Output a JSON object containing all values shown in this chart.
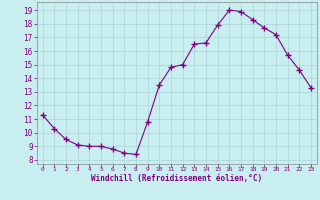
{
  "x": [
    0,
    1,
    2,
    3,
    4,
    5,
    6,
    7,
    8,
    9,
    10,
    11,
    12,
    13,
    14,
    15,
    16,
    17,
    18,
    19,
    20,
    21,
    22,
    23
  ],
  "y": [
    11.3,
    10.3,
    9.5,
    9.1,
    9.0,
    9.0,
    8.8,
    8.5,
    8.4,
    10.8,
    13.5,
    14.8,
    15.0,
    16.5,
    16.6,
    17.9,
    19.0,
    18.9,
    18.3,
    17.7,
    17.2,
    15.7,
    14.6,
    13.3
  ],
  "line_color": "#800080",
  "marker": "+",
  "bg_color": "#c8eef0",
  "grid_color": "#b0d8dc",
  "xlabel": "Windchill (Refroidissement éolien,°C)",
  "yticks": [
    8,
    9,
    10,
    11,
    12,
    13,
    14,
    15,
    16,
    17,
    18,
    19
  ],
  "xlim": [
    -0.5,
    23.5
  ],
  "ylim": [
    7.7,
    19.6
  ]
}
